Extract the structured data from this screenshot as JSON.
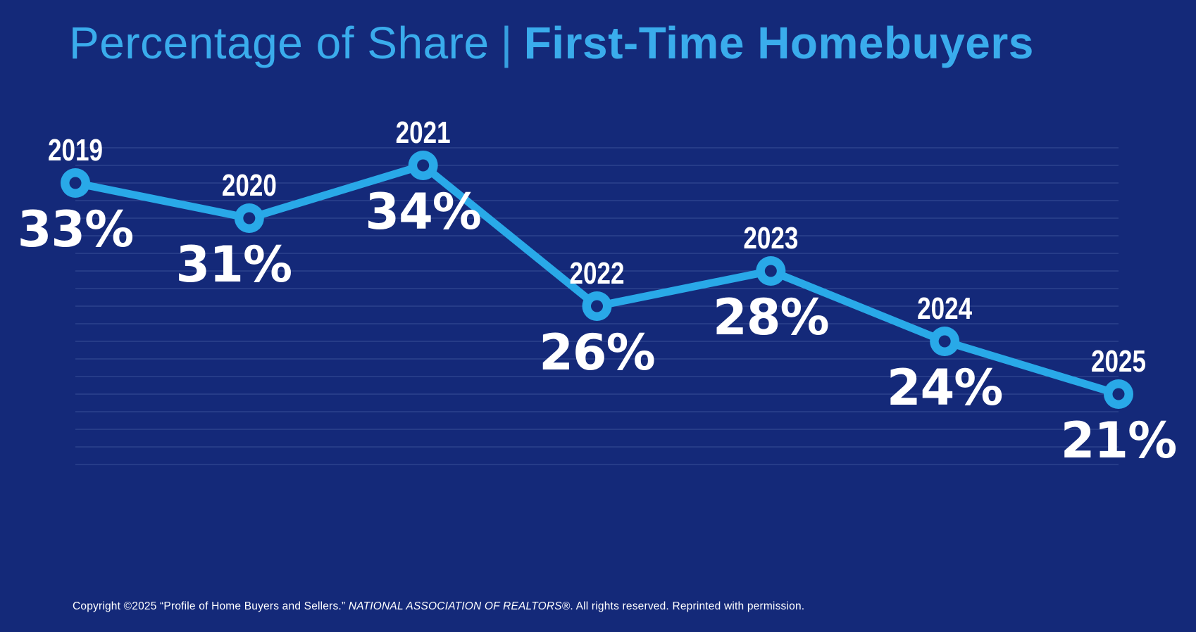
{
  "title": {
    "light": "Percentage of Share",
    "divider": "|",
    "bold": "First-Time Homebuyers"
  },
  "chart_data": {
    "type": "line",
    "categories": [
      "2019",
      "2020",
      "2021",
      "2022",
      "2023",
      "2024",
      "2025"
    ],
    "values": [
      33,
      31,
      34,
      26,
      28,
      24,
      21
    ],
    "value_labels": [
      "33%",
      "31%",
      "34%",
      "26%",
      "28%",
      "24%",
      "21%"
    ],
    "title": "Percentage of Share | First-Time Homebuyers",
    "xlabel": "",
    "ylabel": "",
    "unit": "%",
    "ylim": [
      17,
      35
    ],
    "gridline_step": 1,
    "grid": "horizontal",
    "legend": "none",
    "marker_style": "donut"
  },
  "colors": {
    "background": "#142979",
    "line": "#29A9E8",
    "marker": "#29A9E8",
    "marker_hole": "#142979",
    "title_text": "#3AACEC",
    "label_text": "#FFFFFF",
    "gridline": "#4E63A6",
    "footer_text": "#FFFFFF"
  },
  "footer": {
    "prefix": "Copyright ©2025 “Profile of Home Buyers and Sellers.” ",
    "org": "NATIONAL ASSOCIATION OF REALTORS®",
    "suffix": ". All rights reserved. Reprinted with permission."
  }
}
